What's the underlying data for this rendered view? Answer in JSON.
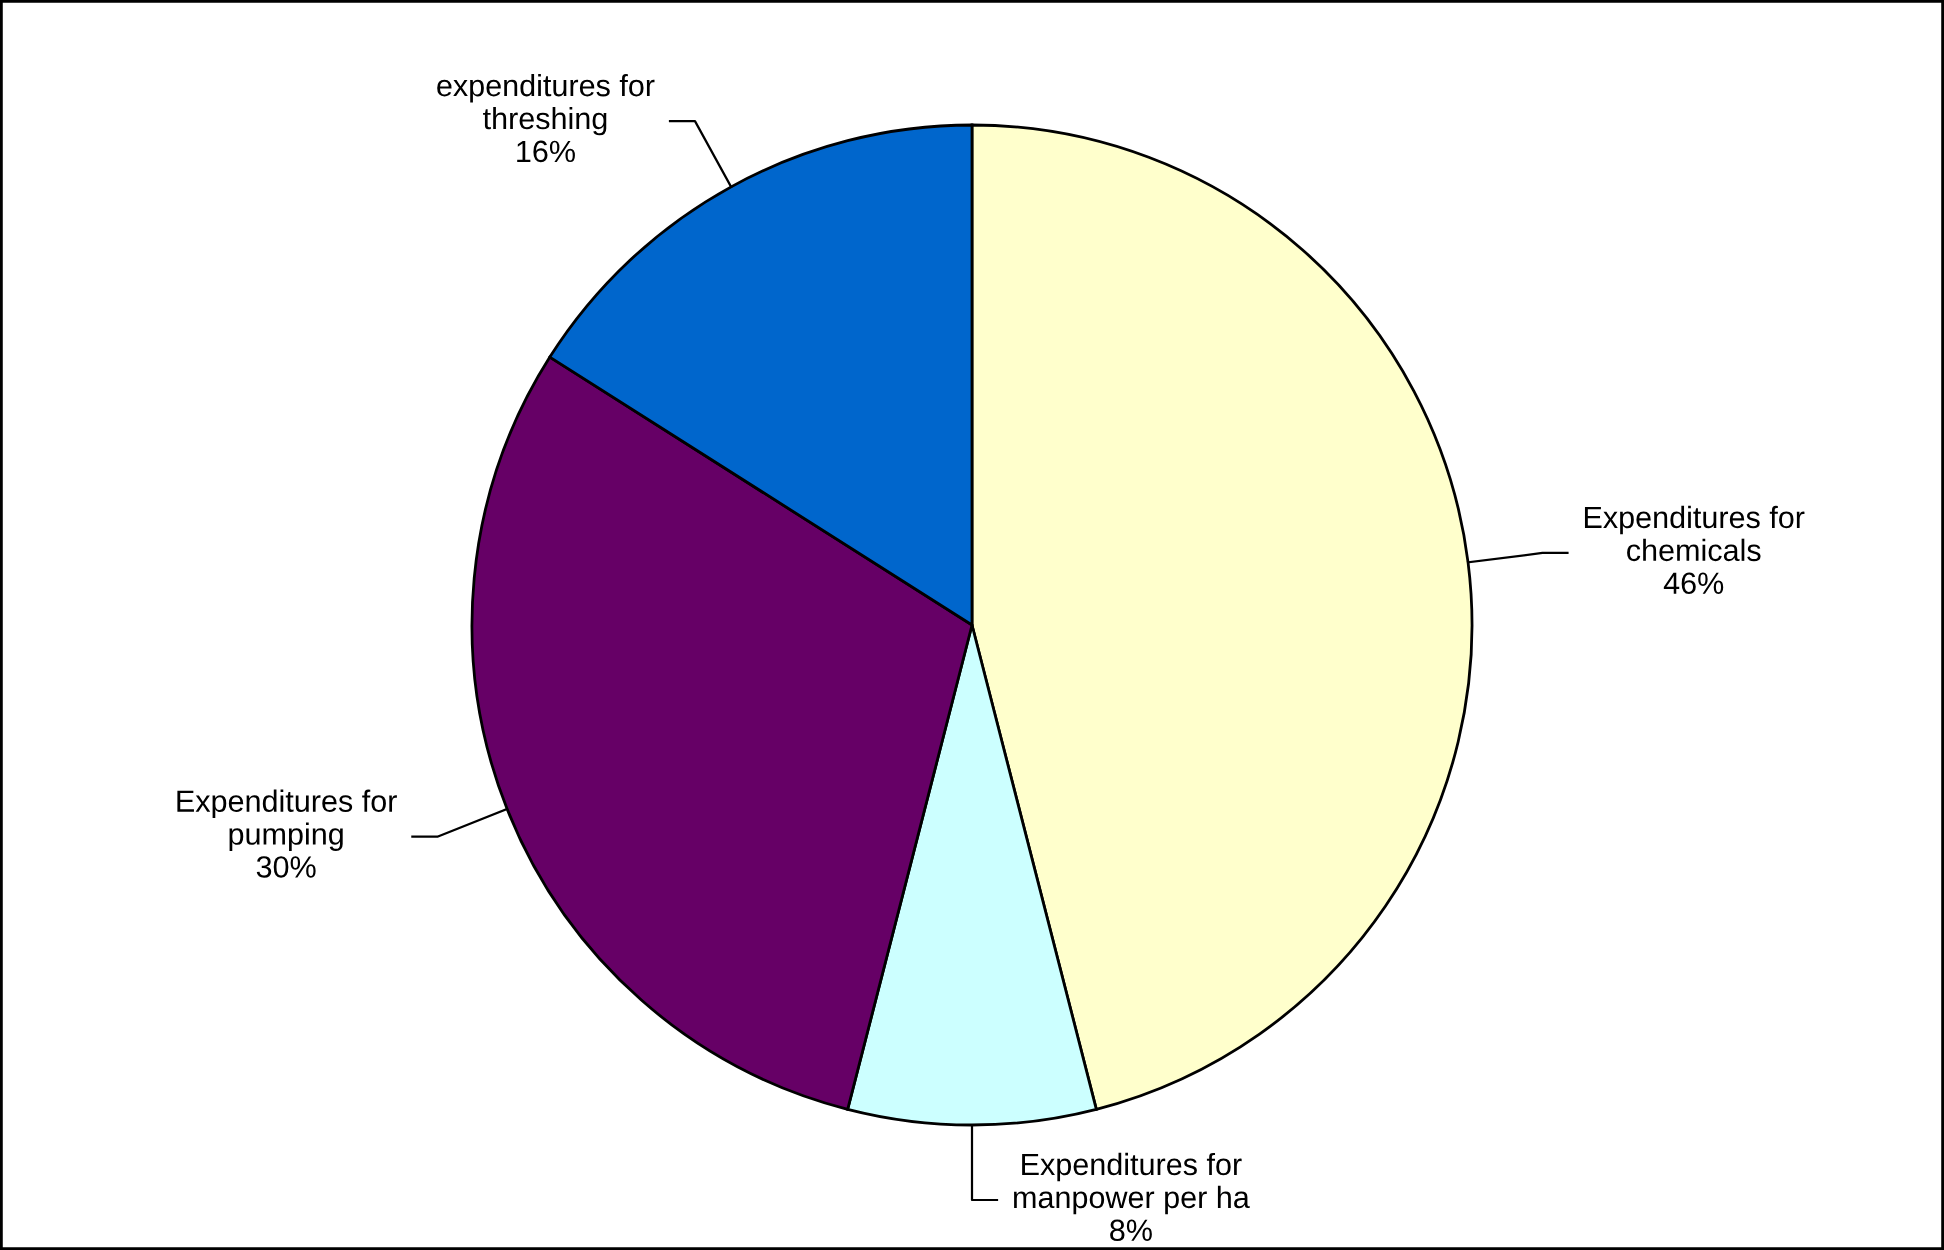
{
  "chart_data": {
    "type": "pie",
    "categories": [
      "Expenditures for\nchemicals",
      "Expenditures for\nmanpower per ha",
      "Expenditures for\npumping",
      "expenditures for\nthreshing"
    ],
    "values": [
      46,
      8,
      30,
      16
    ],
    "value_labels": [
      "46%",
      "8%",
      "30%",
      "16%"
    ],
    "colors": [
      "#ffffcc",
      "#ccffff",
      "#660066",
      "#0066cc"
    ],
    "legend": false
  }
}
